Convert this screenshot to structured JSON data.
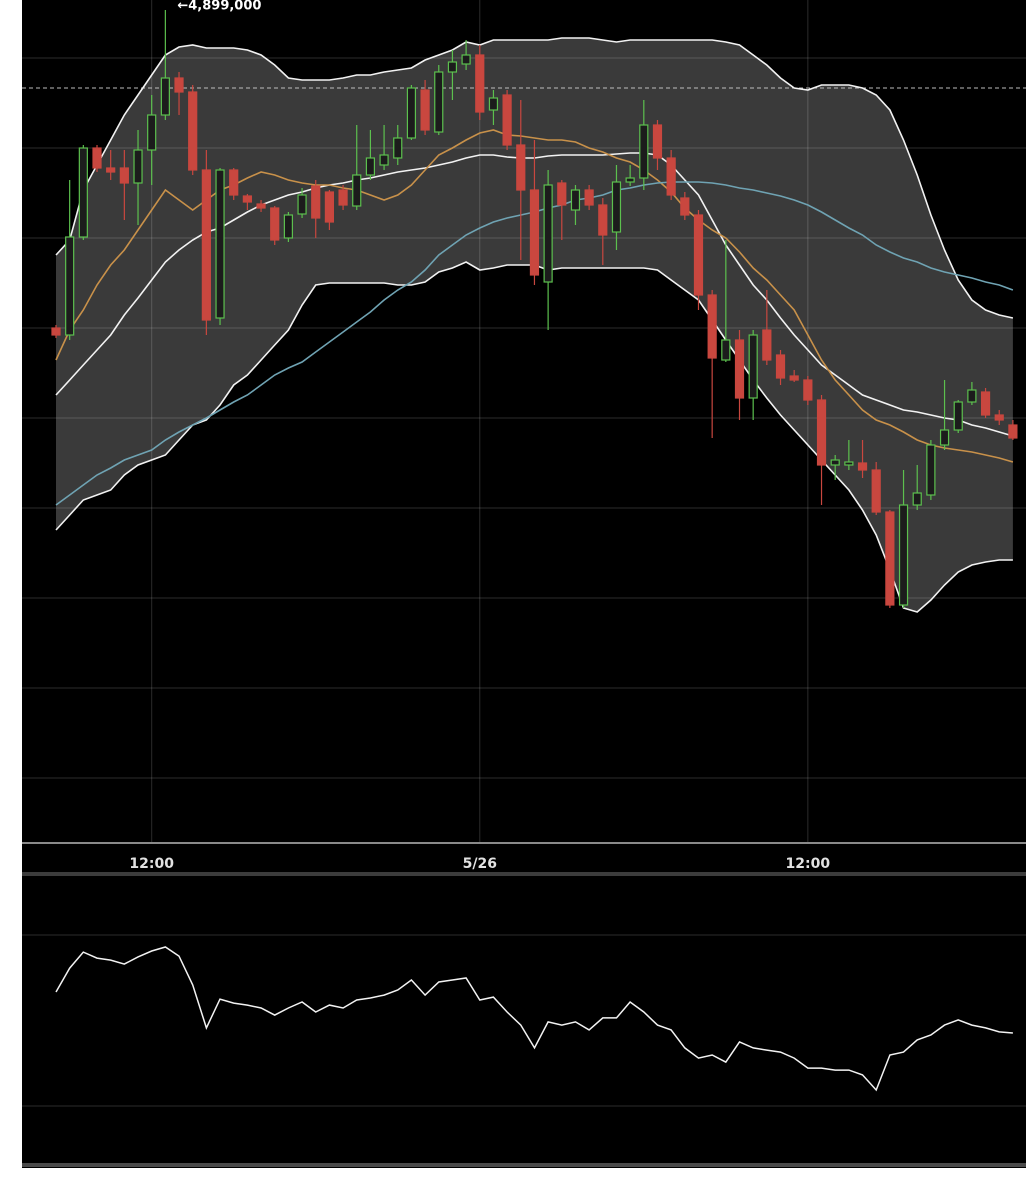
{
  "chart_data": [
    {
      "type": "candlestick",
      "annotation": "←4,899,000",
      "categories": [
        null,
        null,
        null,
        null,
        null,
        null,
        null,
        "12:00",
        null,
        null,
        null,
        null,
        null,
        null,
        null,
        null,
        null,
        null,
        null,
        null,
        null,
        null,
        null,
        null,
        null,
        null,
        null,
        null,
        null,
        null,
        null,
        "5/26",
        null,
        null,
        null,
        null,
        null,
        null,
        null,
        null,
        null,
        null,
        null,
        null,
        null,
        null,
        null,
        null,
        null,
        null,
        null,
        null,
        null,
        null,
        null,
        "12:00",
        null,
        null,
        null,
        null,
        null,
        null,
        null,
        null,
        null,
        null,
        null,
        null,
        null,
        null,
        null
      ],
      "open": [
        4867200,
        4866500,
        4876300,
        4885200,
        4883200,
        4883200,
        4881700,
        4885000,
        4888500,
        4892200,
        4890800,
        4883000,
        4868200,
        4883000,
        4880400,
        4879600,
        4879200,
        4876200,
        4878600,
        4881400,
        4880800,
        4881000,
        4879400,
        4882500,
        4883500,
        4884200,
        4886200,
        4891000,
        4886800,
        4892800,
        4893600,
        4894500,
        4889000,
        4890500,
        4885500,
        4881000,
        4871800,
        4881700,
        4879000,
        4881000,
        4879500,
        4876800,
        4881800,
        4882200,
        4887500,
        4884200,
        4880200,
        4878500,
        4870500,
        4864000,
        4866000,
        4860200,
        4867000,
        4864500,
        4862400,
        4862000,
        4860000,
        4853500,
        4853500,
        4853700,
        4853000,
        4848800,
        4839500,
        4849500,
        4850500,
        4855500,
        4857000,
        4859800,
        4860800,
        4858500,
        4857500
      ],
      "high": [
        4867500,
        4882000,
        4885500,
        4885500,
        4885000,
        4885000,
        4887000,
        4890500,
        4899000,
        4892800,
        4891500,
        4885000,
        4883200,
        4883200,
        4880600,
        4880000,
        4879400,
        4878800,
        4881200,
        4882000,
        4881000,
        4881500,
        4887500,
        4887000,
        4887500,
        4887500,
        4891500,
        4892000,
        4893500,
        4895000,
        4896000,
        4895500,
        4891000,
        4891000,
        4890000,
        4886000,
        4883000,
        4882000,
        4881500,
        4881500,
        4880200,
        4883500,
        4883500,
        4890000,
        4888000,
        4885000,
        4880800,
        4879000,
        4871000,
        4876000,
        4867000,
        4867000,
        4871000,
        4865000,
        4863000,
        4862400,
        4860500,
        4854500,
        4856000,
        4856000,
        4853800,
        4849000,
        4853000,
        4853500,
        4856000,
        4862000,
        4860000,
        4861800,
        4861200,
        4859000,
        4858000
      ],
      "low": [
        4866200,
        4866000,
        4876000,
        4882800,
        4882000,
        4878000,
        4877500,
        4881500,
        4888000,
        4888500,
        4882500,
        4866500,
        4867500,
        4880000,
        4879000,
        4878800,
        4875500,
        4875800,
        4878200,
        4876200,
        4877000,
        4879000,
        4879000,
        4882000,
        4883000,
        4883500,
        4886000,
        4886500,
        4886500,
        4890000,
        4893000,
        4888000,
        4887500,
        4885000,
        4874000,
        4871500,
        4867000,
        4876000,
        4877500,
        4879000,
        4873500,
        4875000,
        4881400,
        4881000,
        4883000,
        4880000,
        4878000,
        4869000,
        4856200,
        4863800,
        4858000,
        4858000,
        4863500,
        4861500,
        4861800,
        4859500,
        4849500,
        4852000,
        4853000,
        4852200,
        4848500,
        4839200,
        4839200,
        4849000,
        4850000,
        4855000,
        4856700,
        4859500,
        4858200,
        4857500,
        4856000
      ],
      "close": [
        4866500,
        4876300,
        4885200,
        4883200,
        4882800,
        4881700,
        4885000,
        4888500,
        4892200,
        4890800,
        4883000,
        4868000,
        4883000,
        4880500,
        4879800,
        4879200,
        4876000,
        4878500,
        4880500,
        4878200,
        4877800,
        4879500,
        4882500,
        4884200,
        4884500,
        4886200,
        4891200,
        4887000,
        4892800,
        4893800,
        4894500,
        4888800,
        4890200,
        4885500,
        4881000,
        4872500,
        4881500,
        4879500,
        4881000,
        4879500,
        4876500,
        4881800,
        4882200,
        4887500,
        4884200,
        4880500,
        4878500,
        4870500,
        4864200,
        4866000,
        4860200,
        4866500,
        4864000,
        4862200,
        4862000,
        4860000,
        4853500,
        4854000,
        4853800,
        4853000,
        4848800,
        4839500,
        4849500,
        4850700,
        4855500,
        4857000,
        4859800,
        4861000,
        4858500,
        4858000,
        4856200
      ],
      "up_color": "#5cc04e",
      "down_color": "#c9473f",
      "band_color": "#3a3a3a",
      "series": [
        {
          "color": "#f2f2f2",
          "values": [
            4874500,
            4876000,
            4881000,
            4883500,
            4886000,
            4888500,
            4890500,
            4892500,
            4894500,
            4895300,
            4895500,
            4895200,
            4895200,
            4895200,
            4895000,
            4894500,
            4893500,
            4892200,
            4892000,
            4892000,
            4892000,
            4892200,
            4892500,
            4892500,
            4892800,
            4893000,
            4893200,
            4894000,
            4894500,
            4895000,
            4895800,
            4895500,
            4896000,
            4896000,
            4896000,
            4896000,
            4896000,
            4896200,
            4896200,
            4896200,
            4896000,
            4895800,
            4896000,
            4896000,
            4896000,
            4896000,
            4896000,
            4896000,
            4896000,
            4895800,
            4895500,
            4894500,
            4893500,
            4892200,
            4891200,
            4891000,
            4891500,
            4891500,
            4891500,
            4891200,
            4890500,
            4889000,
            4886000,
            4882500,
            4878500,
            4875000,
            4872000,
            4870000,
            4869000,
            4868500,
            4868200
          ]
        },
        {
          "color": "#f2f2f2",
          "values": [
            4860500,
            4862000,
            4863500,
            4865000,
            4866500,
            4868500,
            4870200,
            4872000,
            4873800,
            4875000,
            4876000,
            4876800,
            4877200,
            4878000,
            4878800,
            4879500,
            4880000,
            4880500,
            4880800,
            4881200,
            4881500,
            4881700,
            4882000,
            4882200,
            4882500,
            4882800,
            4883000,
            4883200,
            4883500,
            4883800,
            4884200,
            4884500,
            4884500,
            4884300,
            4884200,
            4884200,
            4884400,
            4884500,
            4884500,
            4884500,
            4884500,
            4884600,
            4884700,
            4884700,
            4884500,
            4883500,
            4882000,
            4880500,
            4878000,
            4875500,
            4873500,
            4871500,
            4870000,
            4868200,
            4866500,
            4865000,
            4863500,
            4862500,
            4861500,
            4860500,
            4860000,
            4859500,
            4859000,
            4858800,
            4858500,
            4858200,
            4858000,
            4857500,
            4857200,
            4856800,
            4856400
          ]
        },
        {
          "color": "#f2f2f2",
          "values": [
            4847000,
            4848500,
            4850000,
            4850500,
            4851000,
            4852500,
            4853500,
            4854000,
            4854500,
            4856000,
            4857500,
            4858000,
            4859500,
            4861500,
            4862500,
            4864000,
            4865500,
            4867000,
            4869500,
            4871500,
            4871700,
            4871700,
            4871700,
            4871700,
            4871700,
            4871500,
            4871500,
            4871800,
            4872800,
            4873200,
            4873800,
            4873000,
            4873200,
            4873500,
            4873500,
            4873500,
            4873000,
            4873200,
            4873200,
            4873200,
            4873200,
            4873200,
            4873200,
            4873200,
            4873000,
            4872000,
            4871000,
            4870000,
            4868000,
            4866000,
            4864000,
            4862000,
            4860200,
            4858500,
            4857000,
            4855500,
            4854000,
            4852500,
            4851000,
            4849000,
            4846500,
            4843000,
            4839200,
            4838800,
            4840000,
            4841500,
            4842800,
            4843500,
            4843800,
            4844000,
            4844000
          ]
        },
        {
          "color": "#c8914a",
          "values": [
            4864000,
            4867000,
            4869000,
            4871500,
            4873500,
            4875000,
            4877000,
            4879000,
            4881000,
            4880000,
            4879000,
            4880000,
            4881000,
            4881500,
            4882200,
            4882800,
            4882500,
            4882000,
            4881700,
            4881500,
            4881500,
            4881200,
            4881000,
            4880500,
            4880000,
            4880500,
            4881500,
            4883000,
            4884500,
            4885200,
            4886000,
            4886700,
            4887000,
            4886500,
            4886400,
            4886200,
            4886000,
            4886000,
            4885800,
            4885200,
            4884800,
            4884200,
            4883800,
            4883000,
            4882000,
            4880800,
            4879200,
            4878000,
            4877000,
            4876200,
            4874800,
            4873200,
            4872000,
            4870500,
            4869000,
            4866500,
            4864000,
            4862000,
            4860500,
            4859000,
            4858000,
            4857500,
            4856800,
            4856000,
            4855500,
            4855200,
            4855000,
            4854800,
            4854500,
            4854200,
            4853800
          ]
        },
        {
          "color": "#6fa3b3",
          "values": [
            4849500,
            4850500,
            4851500,
            4852500,
            4853200,
            4854000,
            4854500,
            4855000,
            4856000,
            4856800,
            4857500,
            4858200,
            4859000,
            4859800,
            4860500,
            4861500,
            4862500,
            4863200,
            4863800,
            4864800,
            4865800,
            4866800,
            4867800,
            4868800,
            4870000,
            4871000,
            4871800,
            4873000,
            4874500,
            4875500,
            4876500,
            4877200,
            4877800,
            4878200,
            4878500,
            4878800,
            4879200,
            4879500,
            4880000,
            4880200,
            4880500,
            4881000,
            4881200,
            4881500,
            4881700,
            4881800,
            4881800,
            4881800,
            4881700,
            4881500,
            4881200,
            4881000,
            4880700,
            4880400,
            4880000,
            4879500,
            4878800,
            4878000,
            4877200,
            4876500,
            4875500,
            4874800,
            4874200,
            4873800,
            4873200,
            4872800,
            4872500,
            4872200,
            4871800,
            4871500,
            4871000
          ]
        }
      ],
      "reference_line": 4891200,
      "ylim": [
        4815800,
        4900000
      ],
      "yticks": [
        4894200,
        4885200,
        4876200,
        4867200,
        4858200,
        4849200,
        4840200,
        4831200,
        4822200
      ],
      "grid": true
    },
    {
      "type": "line",
      "series": [
        {
          "color": "#f2f2f2",
          "values": [
            60,
            68.4,
            74,
            71.9,
            71.2,
            69.8,
            72.3,
            74.4,
            75.8,
            72.6,
            62.5,
            47.4,
            57.5,
            56.1,
            55.4,
            54.4,
            51.9,
            54.4,
            56.5,
            53,
            55.4,
            54.4,
            57.2,
            57.9,
            58.9,
            60.7,
            64.2,
            58.9,
            63.5,
            64.2,
            64.9,
            57.2,
            58.2,
            53,
            48.4,
            40.4,
            49.5,
            48.4,
            49.5,
            46.7,
            50.9,
            50.9,
            56.5,
            53,
            48.4,
            46.7,
            40.4,
            36.8,
            37.9,
            35.4,
            42.5,
            40.4,
            39.6,
            38.9,
            36.8,
            33.3,
            33.3,
            32.6,
            32.6,
            30.9,
            25.6,
            37.9,
            38.9,
            43.2,
            44.9,
            48.4,
            50.2,
            48.4,
            47.4,
            46,
            45.6
          ]
        }
      ],
      "ylim": [
        0,
        100
      ],
      "yticks": [
        20,
        80
      ],
      "grid": true
    }
  ]
}
